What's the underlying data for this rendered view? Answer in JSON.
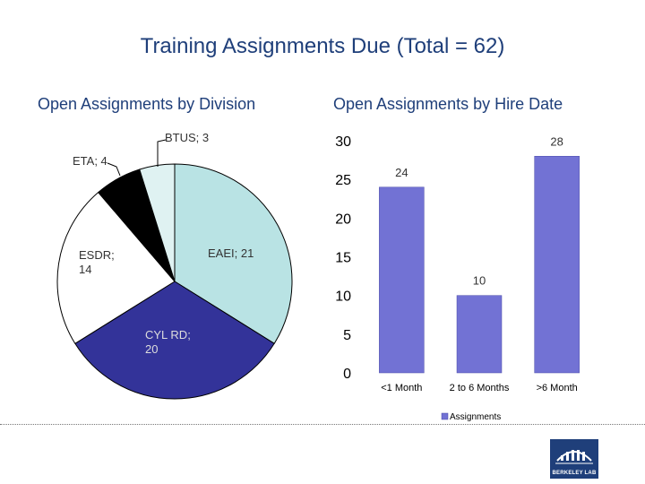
{
  "title": "Training Assignments Due (Total = 62)",
  "colors": {
    "title": "#1f3f7a",
    "bar": "#7272d4"
  },
  "logo_text": "BERKELEY LAB",
  "chart_data": [
    {
      "type": "pie",
      "title": "Open Assignments by Division",
      "slices": [
        {
          "name": "EAEI",
          "value": 21,
          "label": "EAEI; 21",
          "color": "#b9e3e4"
        },
        {
          "name": "CYL RD",
          "value": 20,
          "label_lines": [
            "CYL RD;",
            "20"
          ],
          "color": "#333399"
        },
        {
          "name": "ESDR",
          "value": 14,
          "label_lines": [
            "ESDR;",
            "14"
          ],
          "color": "#ffffff"
        },
        {
          "name": "ETA",
          "value": 4,
          "label": "ETA; 4",
          "color": "#000000"
        },
        {
          "name": "BTUS",
          "value": 3,
          "label": "BTUS; 3",
          "color": "#dff2f2"
        }
      ]
    },
    {
      "type": "bar",
      "title": "Open Assignments by Hire Date",
      "categories": [
        "<1 Month",
        "2 to 6 Months",
        ">6 Month"
      ],
      "values": [
        24,
        10,
        28
      ],
      "ylim": [
        0,
        30
      ],
      "yticks": [
        "0",
        "5",
        "10",
        "15",
        "20",
        "25",
        "30"
      ],
      "legend": "Assignments"
    }
  ]
}
